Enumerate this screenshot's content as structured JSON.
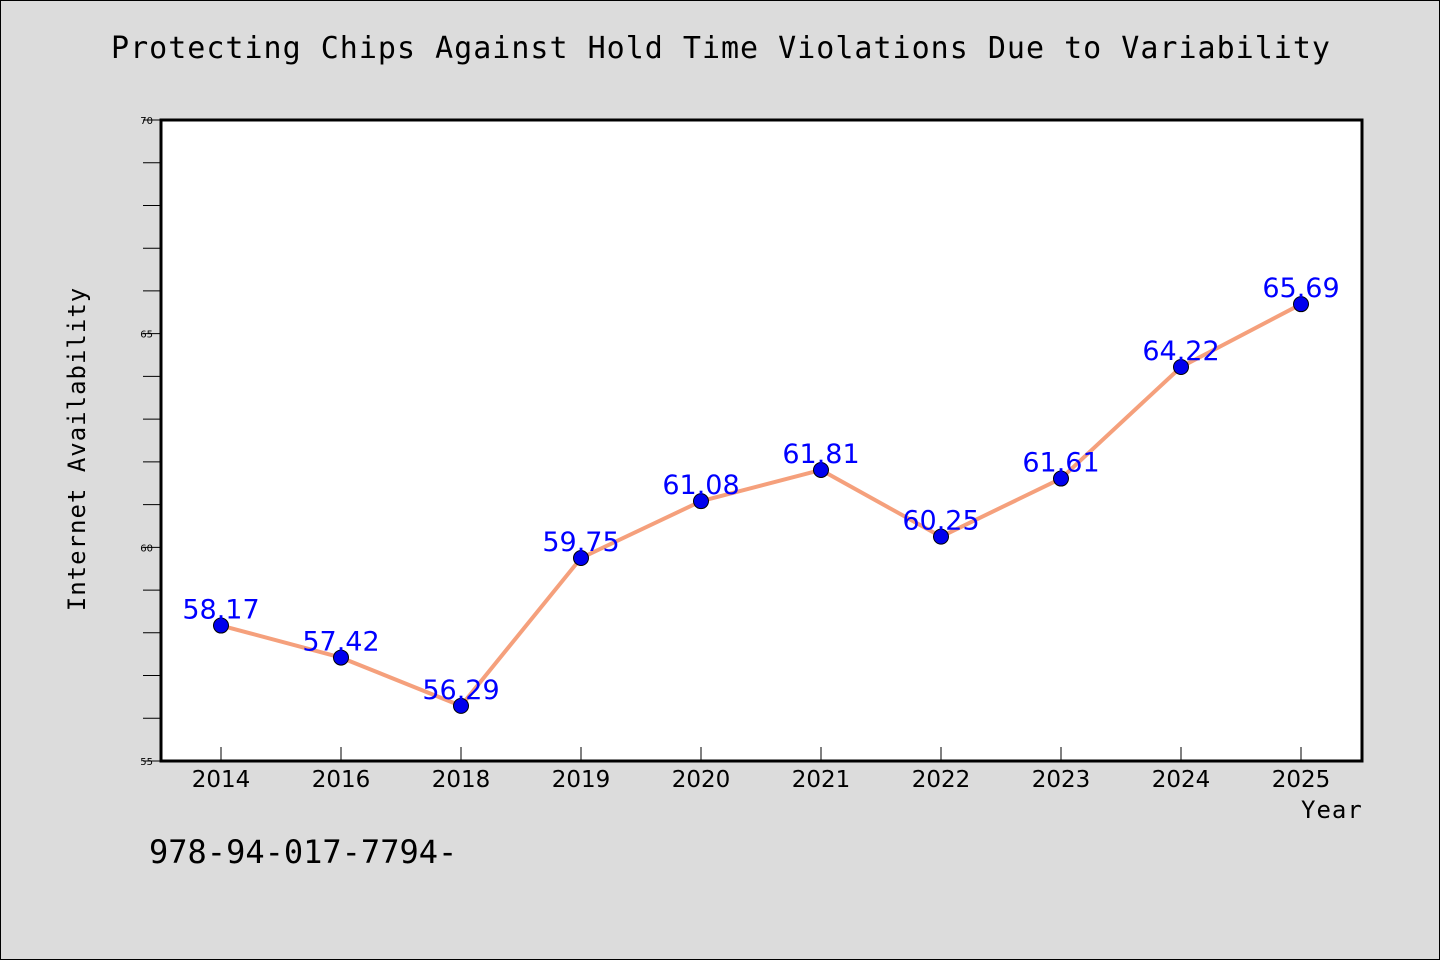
{
  "chart_data": {
    "type": "line",
    "title": "Protecting Chips Against Hold Time Violations Due to Variability",
    "xlabel": "Year",
    "ylabel": "Internet Availability",
    "categories": [
      "2014",
      "2016",
      "2018",
      "2019",
      "2020",
      "2021",
      "2022",
      "2023",
      "2024",
      "2025"
    ],
    "series": [
      {
        "values": [
          58.17,
          57.42,
          56.29,
          59.75,
          61.08,
          61.81,
          60.25,
          61.61,
          64.22,
          65.69
        ],
        "data_labels": [
          "58.17",
          "57.42",
          "56.29",
          "59.75",
          "61.08",
          "61.81",
          "60.25",
          "61.61",
          "64.22",
          "65.69"
        ]
      }
    ],
    "ylim": [
      55,
      70
    ],
    "yticks": [
      "55",
      "60",
      "65",
      "70"
    ],
    "grid": false,
    "line_color": "#f5a07c",
    "marker_color": "#0000ee",
    "label_color": "#0000ff",
    "plot_background": "#ffffff"
  },
  "footer": {
    "code": "978-94-017-7794-"
  }
}
